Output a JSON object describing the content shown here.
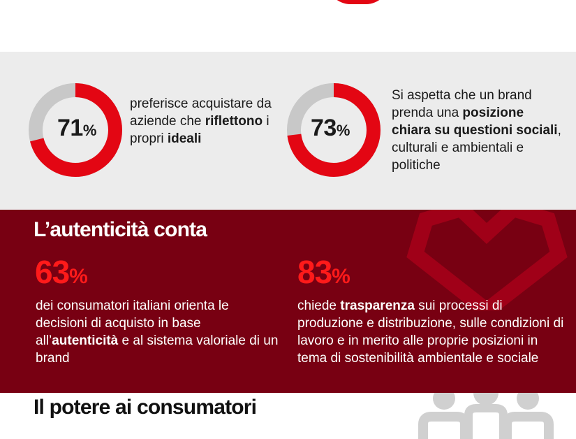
{
  "colors": {
    "red": "#e30613",
    "grey": "#c8c8c8",
    "wine": "#780012",
    "bright_red": "#ff1a1a"
  },
  "stats": [
    {
      "value": 71,
      "number": "71",
      "unit": "%",
      "text": {
        "p1": "preferisce acquistare da aziende che ",
        "b1": "riflettono",
        "p2": " i propri ",
        "b2": "ideali"
      }
    },
    {
      "value": 73,
      "number": "73",
      "unit": "%",
      "text": {
        "p1": "Si aspetta che un brand prenda una ",
        "b1": "posizione chiara su questioni sociali",
        "p2": ", culturali e ambientali e politiche"
      }
    }
  ],
  "authenticity": {
    "title": "L’autenticità conta",
    "icon": "heart-icon",
    "items": [
      {
        "number": "63",
        "unit": "%",
        "text": {
          "p1": "dei consumatori italiani orienta le decisioni di acquisto in base all’",
          "b1": "autenticità",
          "p2": " e al sistema valoriale di un brand"
        }
      },
      {
        "number": "83",
        "unit": "%",
        "text": {
          "p1": "chiede ",
          "b1": "trasparenza",
          "p2": " sui processi di produzione e distribuzione, sulle condizioni di lavoro e in merito alle proprie posizioni in tema di sostenibilità ambientale e sociale"
        }
      }
    ]
  },
  "power": {
    "title": "Il potere ai consumatori",
    "icon": "people-icon"
  }
}
